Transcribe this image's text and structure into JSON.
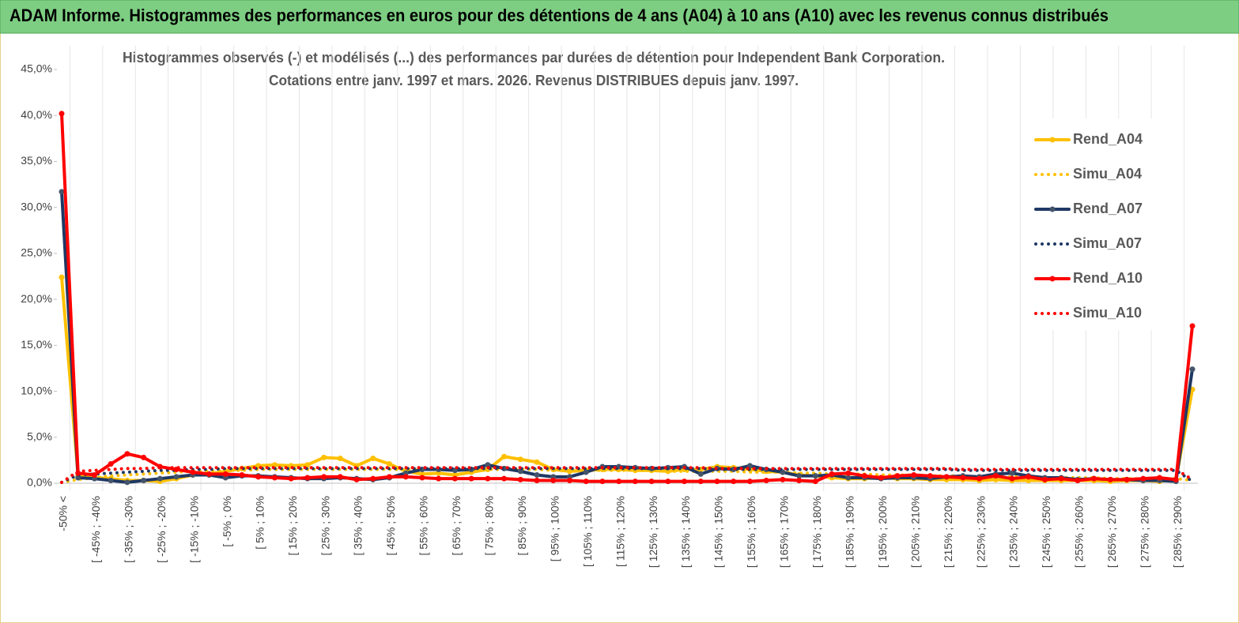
{
  "header": {
    "title": "ADAM Informe. Histogrammes des performances en euros pour des détentions de 4 ans (A04) à 10 ans (A10) avec les revenus connus distribués"
  },
  "chart_data": {
    "type": "line",
    "title": "Histogrammes observés (-)  et modélisés (...) des performances par durées de détention pour Independent Bank Corporation.",
    "subtitle": "Cotations entre janv. 1997 et mars. 2026.  Revenus DISTRIBUES depuis janv. 1997.",
    "categories": [
      "-50% <",
      null,
      "[ -45% ; -40%",
      null,
      "[ -35% ; -30%",
      null,
      "[ -25% ; -20%",
      null,
      "[ -15% ; -10%",
      null,
      "[ -5% ; 0%",
      null,
      "[ 5% ; 10%",
      null,
      "[ 15% ; 20%",
      null,
      "[ 25% ; 30%",
      null,
      "[ 35% ; 40%",
      null,
      "[ 45% ; 50%",
      null,
      "[ 55% ; 60%",
      null,
      "[ 65% ; 70%",
      null,
      "[ 75% ; 80%",
      null,
      "[ 85% ; 90%",
      null,
      "[ 95% ; 100%",
      null,
      "[ 105% ; 110%",
      null,
      "[ 115% ; 120%",
      null,
      "[ 125% ; 130%",
      null,
      "[ 135% ; 140%",
      null,
      "[ 145% ; 150%",
      null,
      "[ 155% ; 160%",
      null,
      "[ 165% ; 170%",
      null,
      "[ 175% ; 180%",
      null,
      "[ 185% ; 190%",
      null,
      "[ 195% ; 200%",
      null,
      "[ 205% ; 210%",
      null,
      "[ 215% ; 220%",
      null,
      "[ 225% ; 230%",
      null,
      "[ 235% ; 240%",
      null,
      "[ 245% ; 250%",
      null,
      "[ 255% ; 260%",
      null,
      "[ 265% ; 270%",
      null,
      "[ 275% ; 280%",
      null,
      "[ 285% ; 290%",
      null
    ],
    "series": [
      {
        "name": "Rend_A04",
        "color": "#FFC000",
        "dotted": false,
        "values": [
          22.4,
          0.8,
          0.6,
          0.5,
          0.3,
          0.3,
          0.2,
          0.5,
          0.9,
          1.0,
          1.3,
          1.6,
          1.9,
          2.0,
          1.9,
          2.0,
          2.8,
          2.7,
          1.9,
          2.7,
          2.1,
          1.3,
          1.0,
          1.1,
          0.9,
          1.2,
          1.5,
          2.9,
          2.6,
          2.3,
          1.5,
          1.3,
          1.4,
          1.5,
          1.5,
          1.4,
          1.4,
          1.3,
          1.5,
          1.5,
          1.8,
          1.7,
          1.5,
          1.3,
          1.2,
          0.9,
          0.8,
          0.6,
          0.5,
          0.5,
          0.6,
          0.5,
          0.5,
          0.4,
          0.4,
          0.4,
          0.3,
          0.4,
          0.3,
          0.3,
          0.3,
          0.3,
          0.3,
          0.3,
          0.2,
          0.3,
          0.3,
          0.2,
          0.4,
          10.2
        ]
      },
      {
        "name": "Simu_A04",
        "color": "#FFC000",
        "dotted": true,
        "values": [
          0.1,
          0.4,
          0.6,
          0.8,
          0.9,
          1.0,
          1.1,
          1.2,
          1.3,
          1.3,
          1.4,
          1.4,
          1.5,
          1.5,
          1.5,
          1.5,
          1.5,
          1.5,
          1.5,
          1.5,
          1.5,
          1.5,
          1.5,
          1.5,
          1.5,
          1.5,
          1.5,
          1.5,
          1.5,
          1.5,
          1.4,
          1.4,
          1.4,
          1.4,
          1.4,
          1.4,
          1.4,
          1.3,
          1.3,
          1.3,
          1.3,
          1.3,
          1.2,
          1.2,
          1.2,
          1.1,
          1.1,
          1.0,
          1.0,
          1.0,
          0.9,
          0.9,
          0.9,
          0.8,
          0.8,
          0.8,
          0.7,
          0.7,
          0.7,
          0.7,
          0.6,
          0.6,
          0.6,
          0.6,
          0.5,
          0.5,
          0.5,
          0.5,
          0.5,
          0.3
        ]
      },
      {
        "name": "Rend_A07",
        "color": "#1F3864",
        "dotted": false,
        "values": [
          31.7,
          0.6,
          0.5,
          0.3,
          0.1,
          0.3,
          0.5,
          0.7,
          0.9,
          0.9,
          0.6,
          0.8,
          0.8,
          0.7,
          0.6,
          0.5,
          0.5,
          0.6,
          0.5,
          0.4,
          0.6,
          1.1,
          1.5,
          1.5,
          1.4,
          1.5,
          2.0,
          1.6,
          1.3,
          0.9,
          0.7,
          0.7,
          1.2,
          1.8,
          1.8,
          1.7,
          1.6,
          1.7,
          1.8,
          1.0,
          1.6,
          1.5,
          1.9,
          1.5,
          1.2,
          0.8,
          0.8,
          0.9,
          0.6,
          0.6,
          0.5,
          0.6,
          0.6,
          0.5,
          0.7,
          0.8,
          0.7,
          1.0,
          1.1,
          0.8,
          0.6,
          0.6,
          0.4,
          0.5,
          0.4,
          0.4,
          0.3,
          0.3,
          0.2,
          12.4
        ]
      },
      {
        "name": "Simu_A07",
        "color": "#1F3864",
        "dotted": true,
        "values": [
          0.1,
          0.9,
          1.0,
          1.1,
          1.2,
          1.3,
          1.4,
          1.4,
          1.5,
          1.5,
          1.6,
          1.6,
          1.6,
          1.6,
          1.6,
          1.6,
          1.6,
          1.6,
          1.6,
          1.6,
          1.6,
          1.6,
          1.6,
          1.6,
          1.6,
          1.6,
          1.6,
          1.6,
          1.6,
          1.6,
          1.6,
          1.6,
          1.6,
          1.6,
          1.6,
          1.6,
          1.6,
          1.6,
          1.6,
          1.6,
          1.5,
          1.5,
          1.5,
          1.5,
          1.5,
          1.5,
          1.5,
          1.5,
          1.5,
          1.5,
          1.5,
          1.5,
          1.5,
          1.5,
          1.5,
          1.4,
          1.4,
          1.4,
          1.4,
          1.4,
          1.4,
          1.4,
          1.4,
          1.4,
          1.4,
          1.4,
          1.4,
          1.4,
          1.4,
          0.2
        ]
      },
      {
        "name": "Rend_A10",
        "color": "#FF0000",
        "dotted": false,
        "values": [
          40.2,
          1.1,
          0.9,
          2.1,
          3.2,
          2.8,
          1.8,
          1.5,
          1.2,
          1.0,
          1.0,
          0.9,
          0.7,
          0.6,
          0.5,
          0.6,
          0.7,
          0.7,
          0.4,
          0.5,
          0.7,
          0.7,
          0.6,
          0.5,
          0.5,
          0.5,
          0.5,
          0.5,
          0.4,
          0.3,
          0.3,
          0.3,
          0.2,
          0.2,
          0.2,
          0.2,
          0.2,
          0.2,
          0.2,
          0.2,
          0.2,
          0.2,
          0.2,
          0.3,
          0.4,
          0.3,
          0.2,
          1.0,
          1.1,
          0.8,
          0.6,
          0.8,
          0.9,
          0.8,
          0.7,
          0.6,
          0.5,
          0.8,
          0.5,
          0.7,
          0.4,
          0.5,
          0.3,
          0.5,
          0.4,
          0.4,
          0.5,
          0.6,
          0.4,
          17.1
        ]
      },
      {
        "name": "Simu_A10",
        "color": "#FF0000",
        "dotted": true,
        "values": [
          0.1,
          1.3,
          1.4,
          1.5,
          1.6,
          1.6,
          1.7,
          1.7,
          1.7,
          1.7,
          1.7,
          1.7,
          1.7,
          1.7,
          1.7,
          1.7,
          1.7,
          1.7,
          1.7,
          1.7,
          1.7,
          1.7,
          1.7,
          1.7,
          1.7,
          1.7,
          1.7,
          1.7,
          1.7,
          1.7,
          1.7,
          1.7,
          1.7,
          1.7,
          1.7,
          1.7,
          1.7,
          1.7,
          1.7,
          1.7,
          1.6,
          1.6,
          1.6,
          1.6,
          1.6,
          1.6,
          1.6,
          1.6,
          1.6,
          1.6,
          1.6,
          1.6,
          1.6,
          1.6,
          1.6,
          1.5,
          1.5,
          1.5,
          1.5,
          1.5,
          1.5,
          1.5,
          1.5,
          1.5,
          1.5,
          1.5,
          1.5,
          1.5,
          1.5,
          0.4
        ]
      }
    ],
    "ylim": [
      0,
      45
    ],
    "yticks": [
      {
        "value": 0,
        "label": "0,0%"
      },
      {
        "value": 5,
        "label": "5,0%"
      },
      {
        "value": 10,
        "label": "10,0%"
      },
      {
        "value": 15,
        "label": "15,0%"
      },
      {
        "value": 20,
        "label": "20,0%"
      },
      {
        "value": 25,
        "label": "25,0%"
      },
      {
        "value": 30,
        "label": "30,0%"
      },
      {
        "value": 35,
        "label": "35,0%"
      },
      {
        "value": 40,
        "label": "40,0%"
      },
      {
        "value": 45,
        "label": "45,0%"
      }
    ],
    "legend": "right"
  }
}
